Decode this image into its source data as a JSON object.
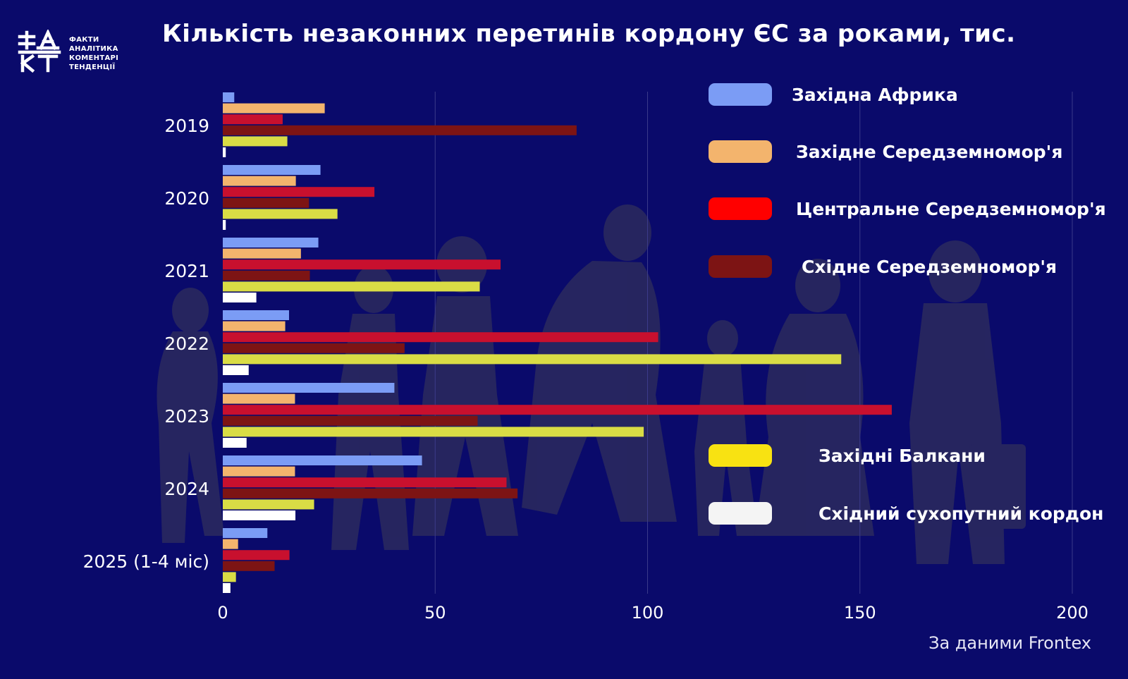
{
  "header": {
    "title": "Кількість незаконних перетинів кордону ЄС за роками, тис.",
    "logo_lines": [
      "ФАКТИ",
      "АНАЛІТИКА",
      "КОМЕНТАРІ",
      "ТЕНДЕНЦІЇ"
    ]
  },
  "source": "За даними Frontex",
  "chart_data": {
    "type": "bar",
    "orientation": "horizontal",
    "title": "Кількість незаконних перетинів кордону ЄС за роками, тис.",
    "categories": [
      "2019",
      "2020",
      "2021",
      "2022",
      "2023",
      "2024",
      "2025 (1-4 міс)"
    ],
    "xlim": [
      0,
      200
    ],
    "xticks": [
      0,
      50,
      100,
      150,
      200
    ],
    "grid": "vertical",
    "legend_position": "right",
    "series": [
      {
        "name": "Західна Африка",
        "color": "#7b9cf5",
        "values": [
          2.7,
          23,
          22.5,
          15.6,
          40.4,
          46.9,
          10.5
        ]
      },
      {
        "name": "Західне Середземномор'я",
        "color": "#f3b46d",
        "values": [
          24,
          17.2,
          18.4,
          14.7,
          17,
          17,
          3.6
        ]
      },
      {
        "name": "Центральне Середземномор'я",
        "color": "#c8102e",
        "values": [
          14.1,
          35.7,
          65.4,
          102.5,
          157.5,
          66.8,
          15.7
        ]
      },
      {
        "name": "Східне Середземномор'я",
        "color": "#7d1414",
        "values": [
          83.3,
          20.3,
          20.5,
          42.8,
          60,
          69.4,
          12.2
        ]
      },
      {
        "name": "Західні Балкани",
        "color": "#d9dc45",
        "values": [
          15.2,
          27,
          60.5,
          145.6,
          99.1,
          21.5,
          3.1
        ]
      },
      {
        "name": "Східний сухопутний кордон",
        "color": "#ffffff",
        "values": [
          0.7,
          0.7,
          7.9,
          6.1,
          5.6,
          17.1,
          1.8
        ]
      }
    ]
  }
}
